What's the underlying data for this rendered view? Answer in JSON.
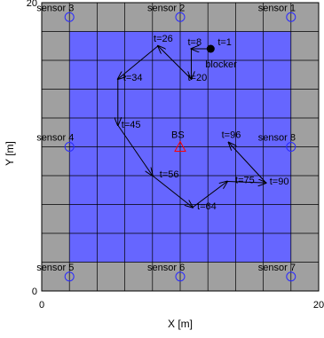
{
  "chart_data": {
    "type": "scatter",
    "xlabel": "X [m]",
    "ylabel": "Y [m]",
    "xlim": [
      0,
      20
    ],
    "ylim": [
      0,
      20
    ],
    "x_ticks": [
      {
        "value": 0,
        "label": "0"
      },
      {
        "value": 20,
        "label": "20"
      }
    ],
    "y_ticks": [
      {
        "value": 0,
        "label": "0"
      },
      {
        "value": 20,
        "label": "20"
      }
    ],
    "grid": {
      "step": 2,
      "show": true
    },
    "colors": {
      "outer_cells": "#a0a0a0",
      "inner_region": "#6666ff",
      "grid_lines": "#000000",
      "sensor_marker": "#2a2aff",
      "bs_marker": "#ff0000",
      "blocker_marker": "#000000",
      "trajectory": "#000000"
    },
    "inner_region": {
      "x": [
        2,
        18
      ],
      "y": [
        2,
        18
      ]
    },
    "sensors": [
      {
        "name": "sensor 1",
        "x": 18,
        "y": 19
      },
      {
        "name": "sensor 2",
        "x": 10,
        "y": 19
      },
      {
        "name": "sensor 3",
        "x": 2,
        "y": 19
      },
      {
        "name": "sensor 4",
        "x": 2,
        "y": 10
      },
      {
        "name": "sensor 5",
        "x": 2,
        "y": 1
      },
      {
        "name": "sensor 6",
        "x": 10,
        "y": 1
      },
      {
        "name": "sensor 7",
        "x": 18,
        "y": 1
      },
      {
        "name": "sensor 8",
        "x": 18,
        "y": 10
      }
    ],
    "base_station": {
      "name": "BS",
      "x": 10,
      "y": 10
    },
    "blocker": {
      "name": "blocker",
      "x": 12.2,
      "y": 16.8
    },
    "trajectory": [
      {
        "label": "t=1",
        "x": 12.2,
        "y": 16.8
      },
      {
        "label": "t=8",
        "x": 10.8,
        "y": 16.8
      },
      {
        "label": "t=20",
        "x": 10.8,
        "y": 14.7
      },
      {
        "label": "t=26",
        "x": 8.4,
        "y": 17.0
      },
      {
        "label": "t=34",
        "x": 5.5,
        "y": 14.7
      },
      {
        "label": "t=45",
        "x": 5.5,
        "y": 11.5
      },
      {
        "label": "t=56",
        "x": 8.0,
        "y": 8.0
      },
      {
        "label": "t=64",
        "x": 10.9,
        "y": 5.8
      },
      {
        "label": "t=75",
        "x": 13.4,
        "y": 7.6
      },
      {
        "label": "t=90",
        "x": 16.2,
        "y": 7.5
      },
      {
        "label": "t=96",
        "x": 13.5,
        "y": 10.3
      }
    ]
  }
}
